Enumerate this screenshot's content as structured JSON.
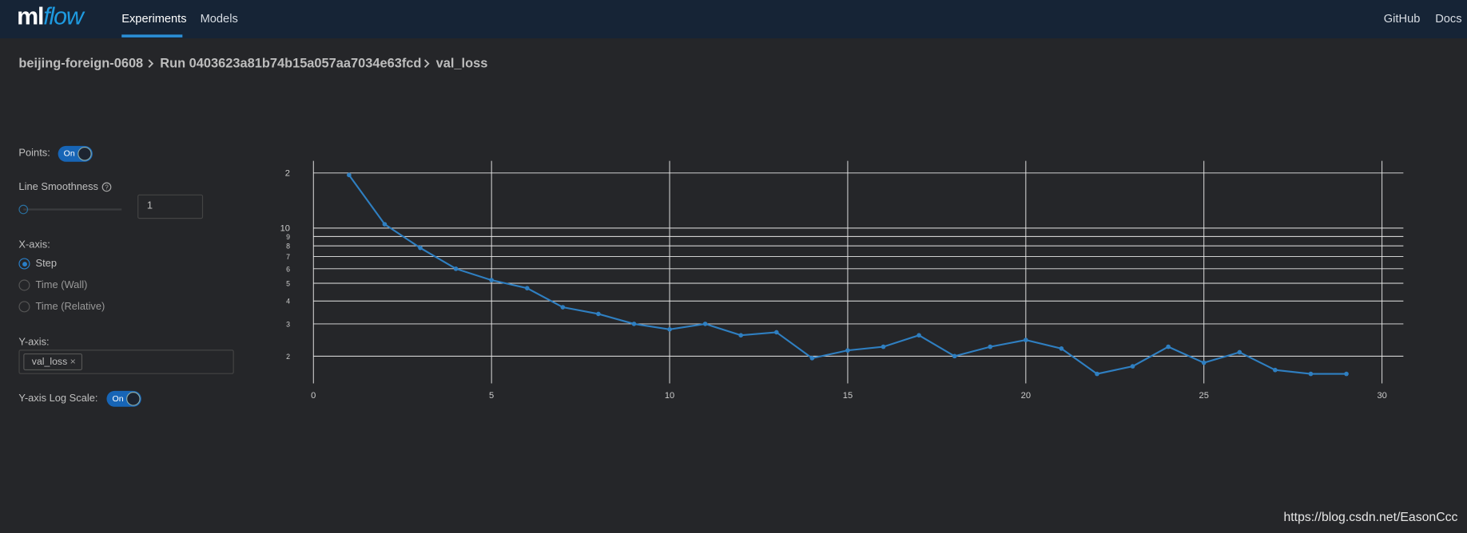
{
  "nav": {
    "logo_ml": "ml",
    "logo_flow": "flow",
    "links": [
      "Experiments",
      "Models"
    ],
    "right_links": [
      "GitHub",
      "Docs"
    ]
  },
  "breadcrumb": [
    "beijing-foreign-0608",
    "Run 0403623a81b74b15a057aa7034e63fcd",
    "val_loss"
  ],
  "controls": {
    "points_label": "Points:",
    "points_toggle": "On",
    "smoothness_label": "Line Smoothness",
    "smoothness_value": "1",
    "x_axis_label": "X-axis:",
    "x_axis_options": [
      "Step",
      "Time (Wall)",
      "Time (Relative)"
    ],
    "y_axis_label": "Y-axis:",
    "y_axis_tag": "val_loss",
    "log_scale_label": "Y-axis Log Scale:",
    "log_scale_toggle": "On"
  },
  "chart_data": {
    "type": "line",
    "log_y": true,
    "grid": true,
    "points": true,
    "color": "#2f7fc1",
    "x": [
      1,
      2,
      3,
      4,
      5,
      6,
      7,
      8,
      9,
      10,
      11,
      12,
      13,
      14,
      15,
      16,
      17,
      18,
      19,
      20,
      21,
      22,
      23,
      24,
      25,
      26,
      27,
      28,
      29
    ],
    "values": [
      19.5,
      10.5,
      7.8,
      6.0,
      5.2,
      4.7,
      3.7,
      3.4,
      3.0,
      2.8,
      3.0,
      2.6,
      2.7,
      1.95,
      2.15,
      2.25,
      2.6,
      2.0,
      2.25,
      2.45,
      2.2,
      1.6,
      1.76,
      2.25,
      1.84,
      2.1,
      1.68,
      1.6,
      1.6
    ],
    "xlim": [
      0,
      30.6
    ],
    "ylim": [
      1.42,
      23.3
    ],
    "xticks": [
      0,
      5,
      10,
      15,
      20,
      25,
      30
    ],
    "yticks": [
      {
        "value": 20,
        "label": "2"
      },
      10,
      9,
      8,
      7,
      6,
      5,
      4,
      3,
      2
    ]
  },
  "watermark": "https://blog.csdn.net/EasonCcc"
}
